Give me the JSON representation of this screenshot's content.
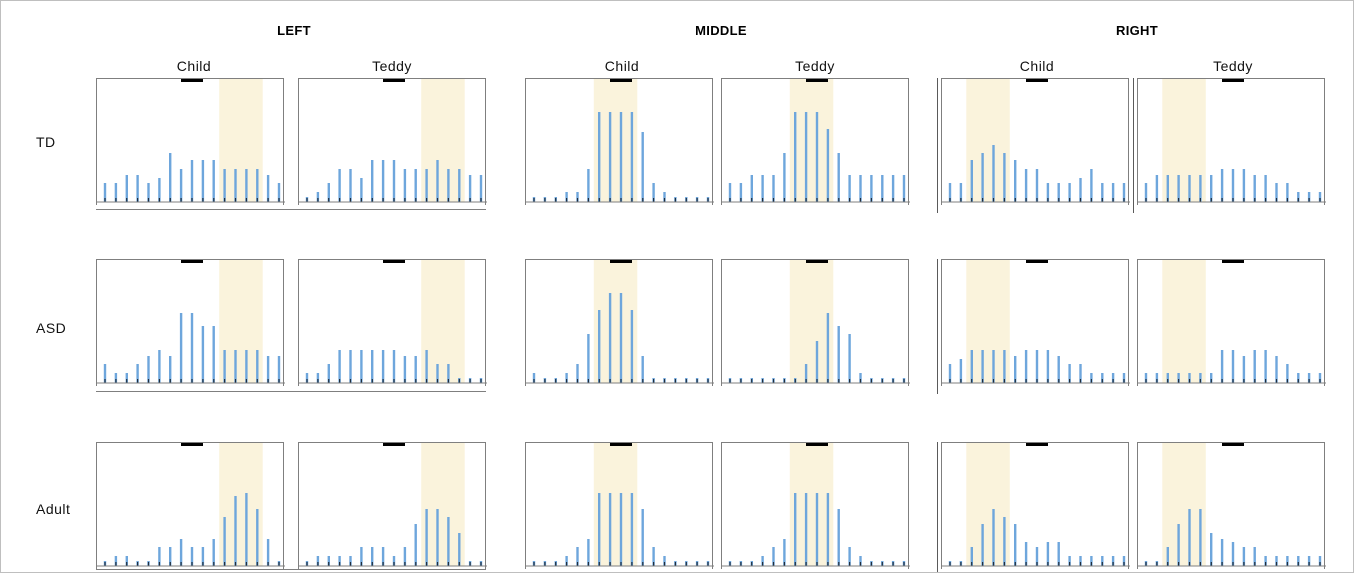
{
  "columns": [
    {
      "title": "LEFT",
      "conditions": [
        "Child",
        "Teddy"
      ]
    },
    {
      "title": "MIDDLE",
      "conditions": [
        "Child",
        "Teddy"
      ]
    },
    {
      "title": "RIGHT",
      "conditions": [
        "Child",
        "Teddy"
      ]
    }
  ],
  "rows": [
    "TD",
    "ASD",
    "Adult"
  ],
  "colors": {
    "bar": "#6ea6dc",
    "shade": "#faf3dc",
    "marker": "#000000",
    "axis": "#7f7f7f"
  },
  "chart_data": [
    {
      "type": "bar",
      "column": "LEFT",
      "condition": "Child",
      "group": "TD",
      "shaded_range": [
        11,
        14
      ],
      "values": [
        19,
        19,
        27,
        27,
        19,
        24,
        49,
        33,
        42,
        42,
        42,
        33,
        33,
        33,
        33,
        27,
        19
      ]
    },
    {
      "type": "bar",
      "column": "LEFT",
      "condition": "Teddy",
      "group": "TD",
      "shaded_range": [
        11,
        14
      ],
      "values": [
        5,
        10,
        19,
        33,
        33,
        24,
        42,
        42,
        42,
        33,
        33,
        33,
        42,
        33,
        33,
        27,
        27
      ]
    },
    {
      "type": "bar",
      "column": "MIDDLE",
      "condition": "Child",
      "group": "TD",
      "shaded_range": [
        6,
        9
      ],
      "values": [
        5,
        5,
        5,
        10,
        10,
        33,
        90,
        90,
        90,
        90,
        70,
        19,
        10,
        5,
        5,
        5,
        5
      ]
    },
    {
      "type": "bar",
      "column": "MIDDLE",
      "condition": "Teddy",
      "group": "TD",
      "shaded_range": [
        6,
        9
      ],
      "values": [
        19,
        19,
        27,
        27,
        27,
        49,
        90,
        90,
        90,
        73,
        49,
        27,
        27,
        27,
        27,
        27,
        27
      ]
    },
    {
      "type": "bar",
      "column": "RIGHT",
      "condition": "Child",
      "group": "TD",
      "shaded_range": [
        2,
        5
      ],
      "values": [
        19,
        19,
        42,
        49,
        57,
        49,
        42,
        33,
        33,
        19,
        19,
        19,
        24,
        33,
        19,
        19,
        19
      ]
    },
    {
      "type": "bar",
      "column": "RIGHT",
      "condition": "Teddy",
      "group": "TD",
      "shaded_range": [
        2,
        5
      ],
      "values": [
        19,
        27,
        27,
        27,
        27,
        27,
        27,
        33,
        33,
        33,
        27,
        27,
        19,
        19,
        10,
        10,
        10
      ]
    },
    {
      "type": "bar",
      "column": "LEFT",
      "condition": "Child",
      "group": "ASD",
      "shaded_range": [
        11,
        14
      ],
      "values": [
        19,
        10,
        10,
        19,
        27,
        33,
        27,
        70,
        70,
        57,
        57,
        33,
        33,
        33,
        33,
        27,
        27
      ]
    },
    {
      "type": "bar",
      "column": "LEFT",
      "condition": "Teddy",
      "group": "ASD",
      "shaded_range": [
        11,
        14
      ],
      "values": [
        10,
        10,
        19,
        33,
        33,
        33,
        33,
        33,
        33,
        27,
        27,
        33,
        19,
        19,
        5,
        5,
        5
      ]
    },
    {
      "type": "bar",
      "column": "MIDDLE",
      "condition": "Child",
      "group": "ASD",
      "shaded_range": [
        6,
        9
      ],
      "values": [
        10,
        5,
        5,
        10,
        19,
        49,
        73,
        90,
        90,
        73,
        27,
        5,
        5,
        5,
        5,
        5,
        5
      ]
    },
    {
      "type": "bar",
      "column": "MIDDLE",
      "condition": "Teddy",
      "group": "ASD",
      "shaded_range": [
        6,
        9
      ],
      "values": [
        5,
        5,
        5,
        5,
        5,
        5,
        5,
        19,
        42,
        70,
        57,
        49,
        10,
        5,
        5,
        5,
        5
      ]
    },
    {
      "type": "bar",
      "column": "RIGHT",
      "condition": "Child",
      "group": "ASD",
      "shaded_range": [
        2,
        5
      ],
      "values": [
        19,
        24,
        33,
        33,
        33,
        33,
        27,
        33,
        33,
        33,
        27,
        19,
        19,
        10,
        10,
        10,
        10
      ]
    },
    {
      "type": "bar",
      "column": "RIGHT",
      "condition": "Teddy",
      "group": "ASD",
      "shaded_range": [
        2,
        5
      ],
      "values": [
        10,
        10,
        10,
        10,
        10,
        10,
        10,
        33,
        33,
        27,
        33,
        33,
        27,
        19,
        10,
        10,
        10
      ]
    },
    {
      "type": "bar",
      "column": "LEFT",
      "condition": "Child",
      "group": "Adult",
      "shaded_range": [
        11,
        14
      ],
      "values": [
        5,
        10,
        10,
        5,
        5,
        19,
        19,
        27,
        19,
        19,
        27,
        49,
        70,
        73,
        57,
        27,
        5
      ]
    },
    {
      "type": "bar",
      "column": "LEFT",
      "condition": "Teddy",
      "group": "Adult",
      "shaded_range": [
        11,
        14
      ],
      "values": [
        5,
        10,
        10,
        10,
        10,
        19,
        19,
        19,
        10,
        19,
        42,
        57,
        57,
        49,
        33,
        5,
        5
      ]
    },
    {
      "type": "bar",
      "column": "MIDDLE",
      "condition": "Child",
      "group": "Adult",
      "shaded_range": [
        6,
        9
      ],
      "values": [
        5,
        5,
        5,
        10,
        19,
        27,
        73,
        73,
        73,
        73,
        57,
        19,
        10,
        5,
        5,
        5,
        5
      ]
    },
    {
      "type": "bar",
      "column": "MIDDLE",
      "condition": "Teddy",
      "group": "Adult",
      "shaded_range": [
        6,
        9
      ],
      "values": [
        5,
        5,
        5,
        10,
        19,
        27,
        73,
        73,
        73,
        73,
        57,
        19,
        10,
        5,
        5,
        5,
        5
      ]
    },
    {
      "type": "bar",
      "column": "RIGHT",
      "condition": "Child",
      "group": "Adult",
      "shaded_range": [
        2,
        5
      ],
      "values": [
        5,
        5,
        19,
        42,
        57,
        49,
        42,
        24,
        19,
        24,
        24,
        10,
        10,
        10,
        10,
        10,
        10
      ]
    },
    {
      "type": "bar",
      "column": "RIGHT",
      "condition": "Teddy",
      "group": "Adult",
      "shaded_range": [
        2,
        5
      ],
      "values": [
        5,
        5,
        19,
        42,
        57,
        57,
        33,
        27,
        24,
        19,
        19,
        10,
        10,
        10,
        10,
        10,
        10
      ]
    }
  ]
}
